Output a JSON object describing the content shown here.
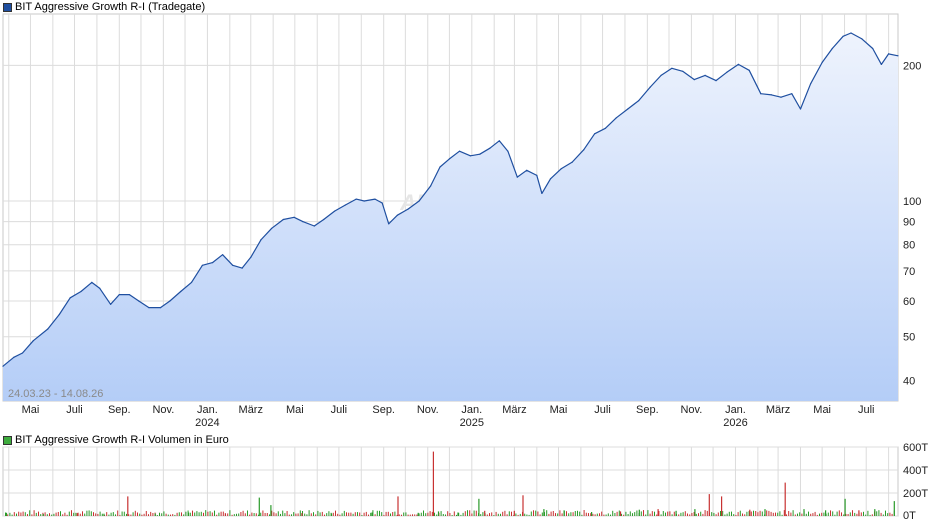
{
  "chart_data": [
    {
      "type": "area",
      "title": "BIT Aggressive Growth R-I (Tradegate)",
      "y_scale": "log",
      "ylim": [
        36,
        260
      ],
      "y_ticks": [
        40,
        50,
        60,
        70,
        80,
        90,
        100,
        200
      ],
      "x_range": [
        "2023-03-24",
        "2026-08-14"
      ],
      "date_range_label": "24.03.23 - 14.08.26",
      "watermark": "ARIVA.DE",
      "colors": {
        "line": "#1f4fa0",
        "fill_top": "#eef3fd",
        "fill_bottom": "#b4cdf7",
        "grid": "#dcdcdc",
        "legend": "#1f4fa0"
      },
      "x_tick_labels": [
        {
          "date": "2023-05-01",
          "label": "Mai"
        },
        {
          "date": "2023-07-01",
          "label": "Juli"
        },
        {
          "date": "2023-09-01",
          "label": "Sep."
        },
        {
          "date": "2023-11-01",
          "label": "Nov."
        },
        {
          "date": "2024-01-01",
          "label": "Jan.",
          "year": "2024"
        },
        {
          "date": "2024-03-01",
          "label": "März"
        },
        {
          "date": "2024-05-01",
          "label": "Mai"
        },
        {
          "date": "2024-07-01",
          "label": "Juli"
        },
        {
          "date": "2024-09-01",
          "label": "Sep."
        },
        {
          "date": "2024-11-01",
          "label": "Nov."
        },
        {
          "date": "2025-01-01",
          "label": "Jan.",
          "year": "2025"
        },
        {
          "date": "2025-03-01",
          "label": "März"
        },
        {
          "date": "2025-05-01",
          "label": "Mai"
        },
        {
          "date": "2025-07-01",
          "label": "Juli"
        },
        {
          "date": "2025-09-01",
          "label": "Sep."
        },
        {
          "date": "2025-11-01",
          "label": "Nov."
        },
        {
          "date": "2026-01-01",
          "label": "Jan.",
          "year": "2026"
        },
        {
          "date": "2026-03-01",
          "label": "März"
        },
        {
          "date": "2026-05-01",
          "label": "Mai"
        },
        {
          "date": "2026-07-01",
          "label": "Juli"
        }
      ],
      "series": [
        {
          "points": [
            [
              "2023-03-24",
              43
            ],
            [
              "2023-04-08",
              45
            ],
            [
              "2023-04-20",
              46
            ],
            [
              "2023-05-05",
              49
            ],
            [
              "2023-05-25",
              52
            ],
            [
              "2023-06-10",
              56
            ],
            [
              "2023-06-25",
              61
            ],
            [
              "2023-07-10",
              63
            ],
            [
              "2023-07-25",
              66
            ],
            [
              "2023-08-05",
              64
            ],
            [
              "2023-08-20",
              59
            ],
            [
              "2023-09-01",
              62
            ],
            [
              "2023-09-15",
              62
            ],
            [
              "2023-09-28",
              60
            ],
            [
              "2023-10-12",
              58
            ],
            [
              "2023-10-28",
              58
            ],
            [
              "2023-11-10",
              60
            ],
            [
              "2023-11-25",
              63
            ],
            [
              "2023-12-10",
              66
            ],
            [
              "2023-12-25",
              72
            ],
            [
              "2024-01-08",
              73
            ],
            [
              "2024-01-22",
              76
            ],
            [
              "2024-02-05",
              72
            ],
            [
              "2024-02-18",
              71
            ],
            [
              "2024-03-01",
              75
            ],
            [
              "2024-03-15",
              82
            ],
            [
              "2024-03-30",
              87
            ],
            [
              "2024-04-15",
              91
            ],
            [
              "2024-04-30",
              92
            ],
            [
              "2024-05-12",
              90
            ],
            [
              "2024-05-28",
              88
            ],
            [
              "2024-06-10",
              91
            ],
            [
              "2024-06-25",
              95
            ],
            [
              "2024-07-10",
              98
            ],
            [
              "2024-07-25",
              101
            ],
            [
              "2024-08-05",
              100
            ],
            [
              "2024-08-20",
              101
            ],
            [
              "2024-08-30",
              99
            ],
            [
              "2024-09-08",
              89
            ],
            [
              "2024-09-20",
              93
            ],
            [
              "2024-10-05",
              96
            ],
            [
              "2024-10-20",
              100
            ],
            [
              "2024-11-05",
              108
            ],
            [
              "2024-11-18",
              119
            ],
            [
              "2024-12-01",
              124
            ],
            [
              "2024-12-15",
              129
            ],
            [
              "2024-12-30",
              126
            ],
            [
              "2025-01-12",
              127
            ],
            [
              "2025-01-26",
              131
            ],
            [
              "2025-02-08",
              136
            ],
            [
              "2025-02-20",
              129
            ],
            [
              "2025-03-05",
              113
            ],
            [
              "2025-03-18",
              117
            ],
            [
              "2025-04-01",
              114
            ],
            [
              "2025-04-08",
              104
            ],
            [
              "2025-04-20",
              112
            ],
            [
              "2025-05-05",
              118
            ],
            [
              "2025-05-20",
              122
            ],
            [
              "2025-06-05",
              130
            ],
            [
              "2025-06-20",
              141
            ],
            [
              "2025-07-05",
              145
            ],
            [
              "2025-07-20",
              153
            ],
            [
              "2025-08-05",
              160
            ],
            [
              "2025-08-20",
              167
            ],
            [
              "2025-09-05",
              179
            ],
            [
              "2025-09-20",
              190
            ],
            [
              "2025-10-05",
              197
            ],
            [
              "2025-10-20",
              194
            ],
            [
              "2025-11-05",
              186
            ],
            [
              "2025-11-20",
              190
            ],
            [
              "2025-12-05",
              185
            ],
            [
              "2025-12-20",
              193
            ],
            [
              "2026-01-05",
              201
            ],
            [
              "2026-01-20",
              195
            ],
            [
              "2026-02-05",
              173
            ],
            [
              "2026-02-20",
              172
            ],
            [
              "2026-03-05",
              170
            ],
            [
              "2026-03-20",
              173
            ],
            [
              "2026-04-01",
              160
            ],
            [
              "2026-04-15",
              182
            ],
            [
              "2026-05-01",
              203
            ],
            [
              "2026-05-15",
              218
            ],
            [
              "2026-05-30",
              232
            ],
            [
              "2026-06-10",
              236
            ],
            [
              "2026-06-25",
              229
            ],
            [
              "2026-07-10",
              218
            ],
            [
              "2026-07-22",
              201
            ],
            [
              "2026-08-01",
              212
            ],
            [
              "2026-08-14",
              210
            ]
          ]
        }
      ]
    },
    {
      "type": "bar",
      "title": "BIT Aggressive Growth R-I Volumen in Euro",
      "ylim": [
        0,
        600
      ],
      "y_unit": "T",
      "y_ticks": [
        0,
        200,
        400,
        600
      ],
      "y_tick_labels": [
        "0T",
        "200T",
        "400T",
        "600T"
      ],
      "colors": {
        "up": "#2a9a2a",
        "down": "#c83232",
        "legend": "#3dab3d"
      },
      "x_range": [
        "2023-03-24",
        "2026-08-14"
      ],
      "series": [
        {
          "spikes": [
            {
              "date": "2023-03-28",
              "value": 28,
              "dir": "up"
            },
            {
              "date": "2023-05-18",
              "value": 18,
              "dir": "up"
            },
            {
              "date": "2023-07-04",
              "value": 25,
              "dir": "down"
            },
            {
              "date": "2023-08-10",
              "value": 20,
              "dir": "up"
            },
            {
              "date": "2023-09-12",
              "value": 170,
              "dir": "down"
            },
            {
              "date": "2023-10-20",
              "value": 22,
              "dir": "up"
            },
            {
              "date": "2023-12-05",
              "value": 30,
              "dir": "up"
            },
            {
              "date": "2024-01-25",
              "value": 24,
              "dir": "down"
            },
            {
              "date": "2024-03-12",
              "value": 160,
              "dir": "up"
            },
            {
              "date": "2024-03-28",
              "value": 95,
              "dir": "up"
            },
            {
              "date": "2024-05-10",
              "value": 25,
              "dir": "down"
            },
            {
              "date": "2024-06-20",
              "value": 22,
              "dir": "up"
            },
            {
              "date": "2024-08-15",
              "value": 30,
              "dir": "up"
            },
            {
              "date": "2024-09-20",
              "value": 170,
              "dir": "down"
            },
            {
              "date": "2024-10-18",
              "value": 28,
              "dir": "up"
            },
            {
              "date": "2024-11-08",
              "value": 560,
              "dir": "down"
            },
            {
              "date": "2024-11-15",
              "value": 40,
              "dir": "up"
            },
            {
              "date": "2024-12-12",
              "value": 30,
              "dir": "up"
            },
            {
              "date": "2025-01-10",
              "value": 150,
              "dir": "up"
            },
            {
              "date": "2025-01-18",
              "value": 45,
              "dir": "down"
            },
            {
              "date": "2025-02-28",
              "value": 45,
              "dir": "down"
            },
            {
              "date": "2025-03-12",
              "value": 180,
              "dir": "down"
            },
            {
              "date": "2025-04-10",
              "value": 60,
              "dir": "up"
            },
            {
              "date": "2025-05-08",
              "value": 50,
              "dir": "up"
            },
            {
              "date": "2025-06-15",
              "value": 35,
              "dir": "up"
            },
            {
              "date": "2025-07-25",
              "value": 40,
              "dir": "down"
            },
            {
              "date": "2025-08-20",
              "value": 55,
              "dir": "up"
            },
            {
              "date": "2025-09-15",
              "value": 60,
              "dir": "down"
            },
            {
              "date": "2025-10-10",
              "value": 45,
              "dir": "up"
            },
            {
              "date": "2025-11-05",
              "value": 60,
              "dir": "up"
            },
            {
              "date": "2025-11-25",
              "value": 190,
              "dir": "down"
            },
            {
              "date": "2025-12-12",
              "value": 170,
              "dir": "down"
            },
            {
              "date": "2026-01-20",
              "value": 55,
              "dir": "down"
            },
            {
              "date": "2026-02-10",
              "value": 60,
              "dir": "up"
            },
            {
              "date": "2026-03-10",
              "value": 290,
              "dir": "down"
            },
            {
              "date": "2026-04-05",
              "value": 60,
              "dir": "up"
            },
            {
              "date": "2026-05-05",
              "value": 50,
              "dir": "up"
            },
            {
              "date": "2026-06-01",
              "value": 150,
              "dir": "up"
            },
            {
              "date": "2026-06-20",
              "value": 50,
              "dir": "down"
            },
            {
              "date": "2026-07-12",
              "value": 60,
              "dir": "up"
            },
            {
              "date": "2026-08-08",
              "value": 130,
              "dir": "up"
            }
          ]
        }
      ]
    }
  ]
}
